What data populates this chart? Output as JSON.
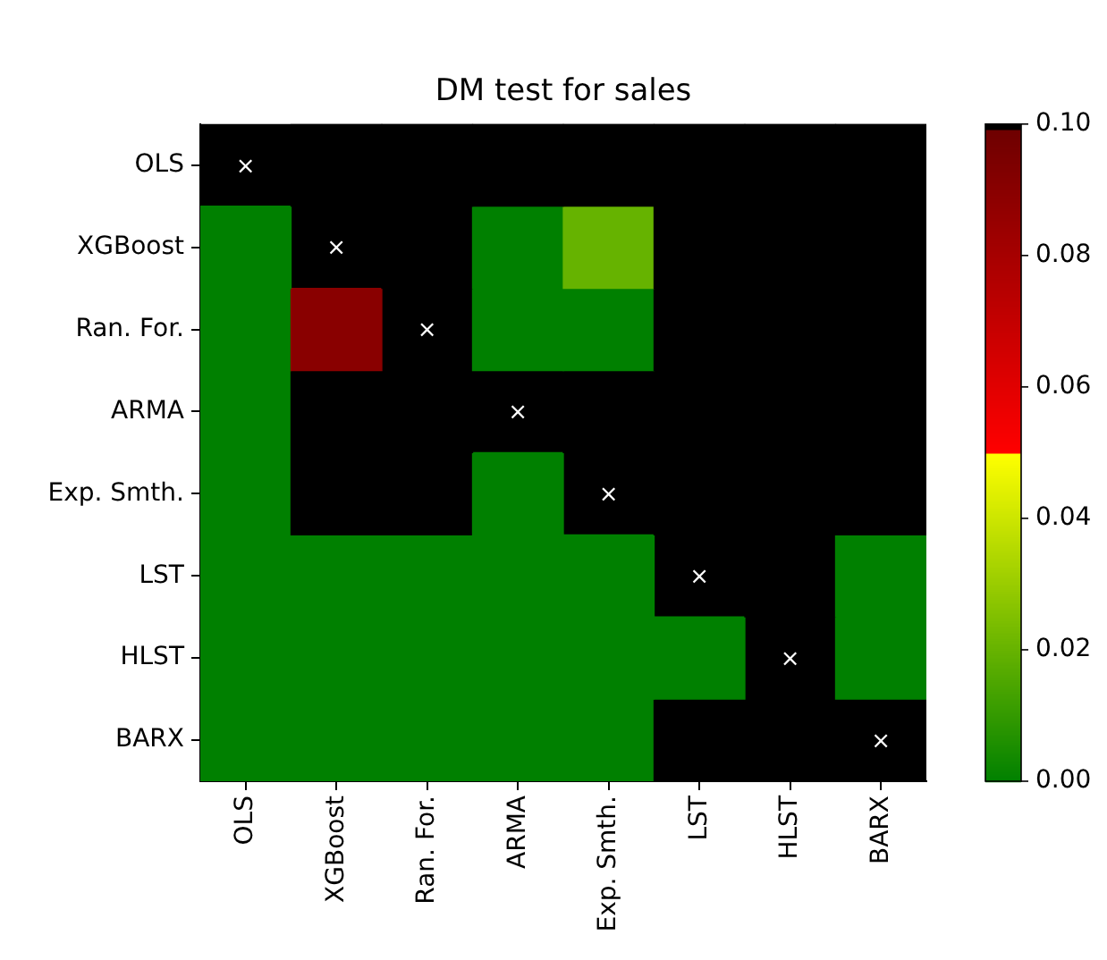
{
  "chart_data": {
    "type": "heatmap",
    "title": "DM test for sales",
    "categories": [
      "OLS",
      "XGBoost",
      "Ran. For.",
      "ARMA",
      "Exp. Smth.",
      "LST",
      "HLST",
      "BARX"
    ],
    "y_categories": [
      "OLS",
      "XGBoost",
      "Ran. For.",
      "ARMA",
      "Exp. Smth.",
      "LST",
      "HLST",
      "BARX"
    ],
    "cells": [
      [
        null,
        0.1,
        0.1,
        0.1,
        0.1,
        0.1,
        0.1,
        0.1
      ],
      [
        0,
        null,
        0.1,
        0,
        0.02,
        0.1,
        0.1,
        0.1
      ],
      [
        0,
        0.09,
        null,
        0,
        0,
        0.1,
        0.1,
        0.1
      ],
      [
        0,
        0.1,
        0.1,
        null,
        0.1,
        0.1,
        0.1,
        0.1
      ],
      [
        0,
        0.1,
        0.1,
        0,
        null,
        0.1,
        0.1,
        0.1
      ],
      [
        0,
        0,
        0,
        0,
        0,
        null,
        0.1,
        0
      ],
      [
        0,
        0,
        0,
        0,
        0,
        0,
        null,
        0
      ],
      [
        0,
        0,
        0,
        0,
        0,
        0.1,
        0.1,
        null
      ]
    ],
    "cell_labels": [
      [
        "×",
        null,
        null,
        null,
        null,
        null,
        null,
        null
      ],
      [
        null,
        "×",
        null,
        null,
        null,
        null,
        null,
        null
      ],
      [
        null,
        null,
        "×",
        null,
        null,
        null,
        null,
        null
      ],
      [
        null,
        null,
        null,
        "×",
        null,
        null,
        null,
        null
      ],
      [
        null,
        null,
        null,
        null,
        "×",
        null,
        null,
        null
      ],
      [
        null,
        null,
        null,
        null,
        null,
        "×",
        null,
        null
      ],
      [
        null,
        null,
        null,
        null,
        null,
        null,
        "×",
        null
      ],
      [
        null,
        null,
        null,
        null,
        null,
        null,
        null,
        "×"
      ]
    ],
    "clim": [
      0,
      0.1
    ],
    "cticks": [
      {
        "value": 0,
        "label": "0.00"
      },
      0.02,
      0.04,
      0.06,
      0.08,
      {
        "value": 0.1,
        "label": "0.10"
      }
    ]
  }
}
